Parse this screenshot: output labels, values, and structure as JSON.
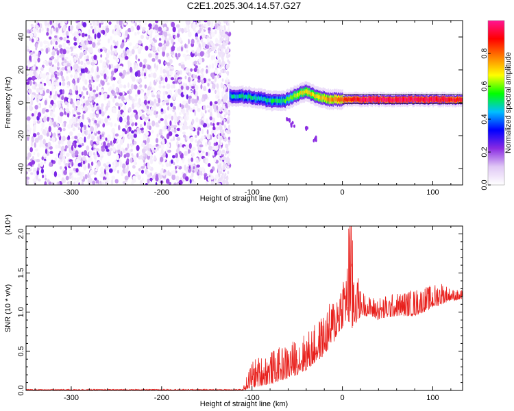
{
  "title": "C2E1.2025.304.14.57.G27",
  "chart_data": [
    {
      "type": "heatmap",
      "xlabel": "Height of straight line (km)",
      "ylabel": "Frequency (Hz)",
      "xlim": [
        -350,
        133
      ],
      "ylim": [
        -50,
        50
      ],
      "xticks": [
        -300,
        -200,
        -100,
        0,
        100
      ],
      "xtick_labels": [
        "-300",
        "-200",
        "-100",
        "0",
        "100"
      ],
      "yticks": [
        -40,
        -20,
        0,
        20,
        40
      ],
      "ytick_labels": [
        "-40",
        "-20",
        "0",
        "20",
        "40"
      ],
      "colorbar": {
        "label": "Normalized spectral amplitude",
        "range": [
          0,
          1
        ],
        "ticks": [
          0.0,
          0.2,
          0.4,
          0.6,
          0.8
        ],
        "tick_labels": [
          "0.0",
          "0.2",
          "0.4",
          "0.6",
          "0.8"
        ],
        "colormap": [
          "#ffffff",
          "#e0c8f5",
          "#8a2be2",
          "#0000ff",
          "#00bfff",
          "#00ff00",
          "#ffff00",
          "#ff8000",
          "#ff0000",
          "#ff1493"
        ]
      },
      "noise_region": {
        "x": [
          -350,
          -125
        ],
        "freq": [
          -50,
          50
        ],
        "amplitude": [
          0.02,
          0.25
        ]
      },
      "signal_band": [
        {
          "x": -125,
          "freq": 4,
          "amplitude": 0.45
        },
        {
          "x": -110,
          "freq": 4,
          "amplitude": 0.5
        },
        {
          "x": -95,
          "freq": 3,
          "amplitude": 0.5
        },
        {
          "x": -80,
          "freq": 1,
          "amplitude": 0.5
        },
        {
          "x": -65,
          "freq": 1,
          "amplitude": 0.55
        },
        {
          "x": -50,
          "freq": 5,
          "amplitude": 0.65
        },
        {
          "x": -40,
          "freq": 7,
          "amplitude": 0.7
        },
        {
          "x": -30,
          "freq": 4,
          "amplitude": 0.7
        },
        {
          "x": -15,
          "freq": 2,
          "amplitude": 0.75
        },
        {
          "x": 0,
          "freq": 2,
          "amplitude": 0.85
        },
        {
          "x": 25,
          "freq": 2,
          "amplitude": 0.95
        },
        {
          "x": 75,
          "freq": 2,
          "amplitude": 0.95
        },
        {
          "x": 100,
          "freq": 2,
          "amplitude": 0.95
        },
        {
          "x": 133,
          "freq": 2,
          "amplitude": 0.9
        }
      ],
      "trail": [
        {
          "x": -60,
          "freq": -10
        },
        {
          "x": -55,
          "freq": -13
        },
        {
          "x": -40,
          "freq": -16
        },
        {
          "x": -30,
          "freq": -22
        }
      ]
    },
    {
      "type": "line",
      "xlabel": "Height of straight line (km)",
      "ylabel": "SNR (10 * v/v)",
      "y_scale_label": "(x10⁴)",
      "xlim": [
        -350,
        133
      ],
      "ylim": [
        0,
        2.1
      ],
      "xticks": [
        -300,
        -200,
        -100,
        0,
        100
      ],
      "xtick_labels": [
        "-300",
        "-200",
        "-100",
        "0",
        "100"
      ],
      "yticks": [
        0.0,
        0.5,
        1.0,
        1.5,
        2.0
      ],
      "ytick_labels": [
        "0.0",
        "0.5",
        "1.0",
        "1.5",
        "2.0"
      ],
      "color": "#e8201c",
      "envelope": {
        "x": [
          -350,
          -110,
          -100,
          -80,
          -60,
          -40,
          -30,
          -20,
          -10,
          0,
          5,
          10,
          15,
          20,
          30,
          40,
          60,
          80,
          100,
          110,
          120,
          133
        ],
        "low": [
          0,
          0,
          0.03,
          0.08,
          0.15,
          0.25,
          0.35,
          0.45,
          0.6,
          0.8,
          0.9,
          0.7,
          0.85,
          0.95,
          0.95,
          0.9,
          0.95,
          0.95,
          1.05,
          1.1,
          1.15,
          1.15
        ],
        "high": [
          0.02,
          0.03,
          0.4,
          0.5,
          0.6,
          0.75,
          0.85,
          1.0,
          1.2,
          1.5,
          1.7,
          2.1,
          1.6,
          1.3,
          1.2,
          1.2,
          1.25,
          1.3,
          1.35,
          1.4,
          1.3,
          1.28
        ]
      }
    }
  ]
}
